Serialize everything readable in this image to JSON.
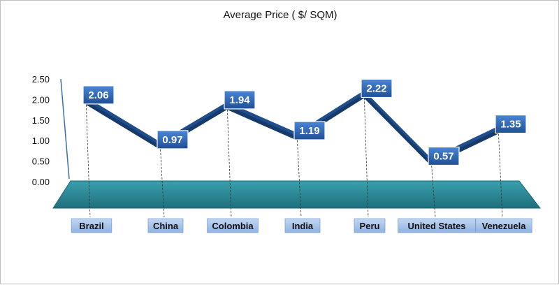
{
  "chart_data": {
    "type": "line",
    "title": "Average Price ( $/ SQM)",
    "xlabel": "",
    "ylabel": "",
    "categories": [
      "Brazil",
      "China",
      "Colombia",
      "India",
      "Peru",
      "United States",
      "Venezuela"
    ],
    "values": [
      2.06,
      0.97,
      1.94,
      1.19,
      2.22,
      0.57,
      1.35
    ],
    "data_labels": [
      "2.06",
      "0.97",
      "1.94",
      "1.19",
      "2.22",
      "0.57",
      "1.35"
    ],
    "y_ticks": [
      "0.00",
      "0.50",
      "1.00",
      "1.50",
      "2.00",
      "2.50"
    ],
    "ylim": [
      0,
      2.5
    ],
    "grid": false,
    "legend": "none",
    "colors": {
      "line": "#1f4e8c",
      "line_shade": "#163a6b",
      "label_box": "#2e64b0",
      "floor": "#2b8a9a",
      "category_box": "#a9c4ea"
    }
  }
}
